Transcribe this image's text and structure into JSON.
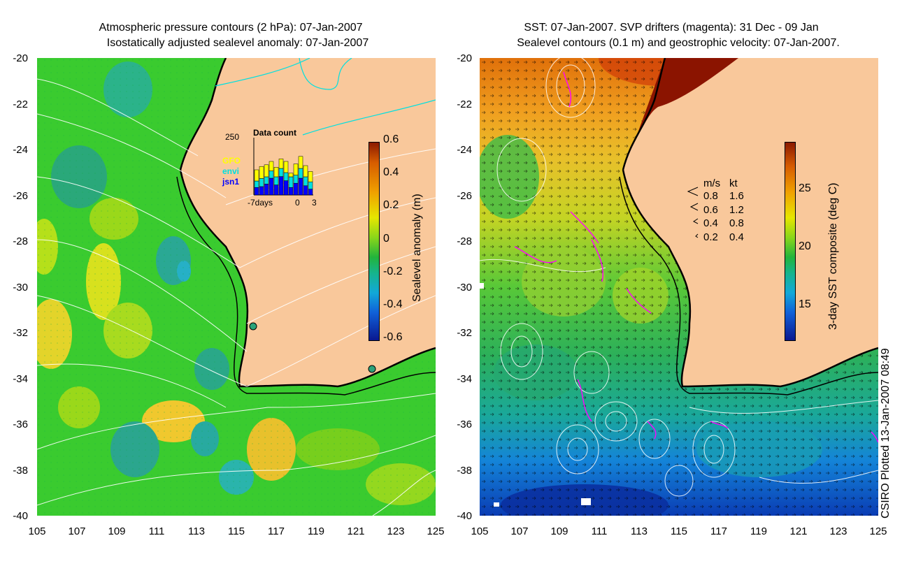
{
  "left_panel": {
    "title_line1": "Atmospheric pressure contours (2 hPa): 07-Jan-2007",
    "title_line2": "Isostatically adjusted sealevel anomaly: 07-Jan-2007",
    "colorbar": {
      "label": "Sealevel anomaly (m)",
      "ticks": [
        "0.6",
        "0.4",
        "0.2",
        "0",
        "-0.2",
        "-0.4",
        "-0.6"
      ],
      "range": [
        -0.6,
        0.6
      ]
    },
    "inset": {
      "title": "Data count",
      "ymax_label": "250",
      "legend": [
        {
          "name": "GFO",
          "color": "#ffff00"
        },
        {
          "name": "envi",
          "color": "#00e0e0"
        },
        {
          "name": "jsn1",
          "color": "#0000ff"
        }
      ],
      "xaxis": [
        "-7days",
        "0",
        "3"
      ]
    }
  },
  "right_panel": {
    "title_line1": "SST: 07-Jan-2007. SVP drifters (magenta): 31 Dec - 09 Jan",
    "title_line2": "Sealevel contours (0.1 m) and geostrophic velocity: 07-Jan-2007.",
    "colorbar": {
      "label": "3-day SST composite (deg C)",
      "ticks": [
        "25",
        "20",
        "15"
      ],
      "range": [
        12,
        29
      ]
    },
    "velocity_legend": {
      "header_ms": "m/s",
      "header_kt": "kt",
      "rows": [
        {
          "ms": "0.8",
          "kt": "1.6"
        },
        {
          "ms": "0.6",
          "kt": "1.2"
        },
        {
          "ms": "0.4",
          "kt": "0.8"
        },
        {
          "ms": "0.2",
          "kt": "0.4"
        }
      ]
    }
  },
  "axes": {
    "y_ticks": [
      "-20",
      "-22",
      "-24",
      "-26",
      "-28",
      "-30",
      "-32",
      "-34",
      "-36",
      "-38",
      "-40"
    ],
    "x_ticks": [
      "105",
      "107",
      "109",
      "111",
      "113",
      "115",
      "117",
      "119",
      "121",
      "123",
      "125"
    ]
  },
  "credit": "CSIRO Plotted 13-Jan-2007 08:49",
  "colors": {
    "land": "#f9c89b",
    "ocean_left": "#34cc3c",
    "contour": "#ffffff",
    "cyan_contour": "#00e0e0",
    "drifter": "#ff00ff"
  }
}
